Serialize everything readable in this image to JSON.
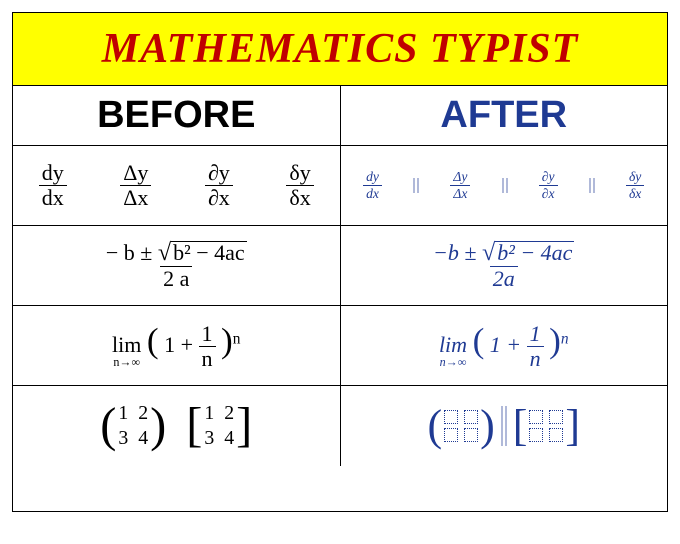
{
  "title": "MATHEMATICS TYPIST",
  "headers": {
    "before": "BEFORE",
    "after": "AFTER"
  },
  "colors": {
    "title_bg": "#ffff00",
    "title_fg": "#c00000",
    "after_fg": "#1f3a93",
    "border": "#000000"
  },
  "rows": [
    {
      "type": "derivatives",
      "before": [
        {
          "num": "dy",
          "den": "dx"
        },
        {
          "num": "Δy",
          "den": "Δx"
        },
        {
          "num": "∂y",
          "den": "∂x"
        },
        {
          "num": "δy",
          "den": "δx"
        }
      ],
      "after": [
        {
          "num": "dy",
          "den": "dx"
        },
        {
          "num": "Δy",
          "den": "Δx"
        },
        {
          "num": "∂y",
          "den": "∂x"
        },
        {
          "num": "δy",
          "den": "δx"
        }
      ]
    },
    {
      "type": "quadratic",
      "before": {
        "neg_b": "− b ±",
        "root": "b² − 4ac",
        "den": "2 a"
      },
      "after": {
        "neg_b": "−b ±",
        "root": "b² − 4ac",
        "den": "2a"
      }
    },
    {
      "type": "limit",
      "before": {
        "lim": "lim",
        "sub": "n→∞",
        "open": "(",
        "inner": "1 +",
        "fnum": "1",
        "fden": "n",
        "close": ")",
        "exp": "n"
      },
      "after": {
        "lim": "lim",
        "sub": "n→∞",
        "open": "(",
        "inner": "1 +",
        "fnum": "1",
        "fden": "n",
        "close": ")",
        "exp": "n"
      }
    },
    {
      "type": "matrix",
      "before": {
        "a": {
          "vals": [
            "1",
            "2",
            "3",
            "4"
          ]
        },
        "b": {
          "vals": [
            "1",
            "2",
            "3",
            "4"
          ]
        }
      },
      "after": {
        "a": {
          "slots": 4
        },
        "b": {
          "slots": 4
        }
      }
    }
  ]
}
